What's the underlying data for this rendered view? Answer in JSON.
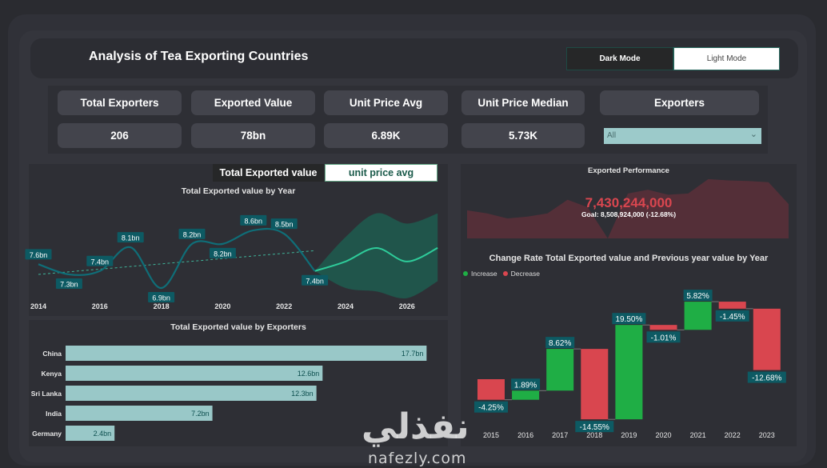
{
  "header": {
    "title": "Analysis of Tea Exporting Countries",
    "dark_mode": "Dark Mode",
    "light_mode": "Light Mode"
  },
  "kpis": [
    {
      "label": "Total Exporters",
      "value": "206"
    },
    {
      "label": "Exported Value",
      "value": "78bn"
    },
    {
      "label": "Unit Price Avg",
      "value": "6.89K"
    },
    {
      "label": "Unit Price Median",
      "value": "5.73K"
    }
  ],
  "filter": {
    "label": "Exporters",
    "value": "All"
  },
  "toggle": {
    "total": "Total Exported value",
    "unit": "unit price avg"
  },
  "performance": {
    "title": "Exported Performance",
    "value": "7,430,244,000",
    "goal": "Goal: 8,508,924,000 (-12.68%)",
    "trend": [
      0.45,
      0.4,
      0.32,
      0.35,
      0.4,
      0.62,
      0.5,
      0.0,
      0.72,
      0.78,
      0.7,
      0.72,
      0.95,
      0.93,
      0.92,
      0.9,
      0.55
    ],
    "accent": "#d9464f"
  },
  "chart_data": [
    {
      "type": "line",
      "title": "Total Exported value by Year",
      "x": [
        2014,
        2015,
        2016,
        2017,
        2018,
        2019,
        2020,
        2021,
        2022,
        2023
      ],
      "values": [
        7.6,
        7.3,
        7.4,
        8.1,
        6.9,
        8.2,
        8.2,
        8.6,
        8.5,
        7.4
      ],
      "labels": [
        "7.6bn",
        "7.3bn",
        "7.4bn",
        "8.1bn",
        "6.9bn",
        "8.2bn",
        "8.2bn",
        "8.6bn",
        "8.5bn",
        "7.4bn"
      ],
      "xticks": [
        "2014",
        "2016",
        "2018",
        "2020",
        "2022",
        "2024",
        "2026"
      ],
      "forecast": {
        "x": [
          2023,
          2024,
          2025,
          2026,
          2027
        ],
        "values": [
          7.4,
          7.68,
          8.08,
          7.68,
          8.08
        ],
        "upper": [
          7.4,
          8.4,
          9.1,
          8.8,
          9.1
        ],
        "lower": [
          7.4,
          6.9,
          6.8,
          6.6,
          7.1
        ]
      },
      "trendline": {
        "x": [
          2014,
          2023
        ],
        "values": [
          7.3,
          8.0
        ]
      },
      "unit": "bn",
      "line_color": "#0f6e78",
      "forecast_color": "#2ecc9a"
    },
    {
      "type": "bar",
      "title": "Total Exported value by Exporters",
      "categories": [
        "China",
        "Kenya",
        "Sri Lanka",
        "India",
        "Germany"
      ],
      "values": [
        17.7,
        12.6,
        12.3,
        7.2,
        2.4
      ],
      "labels": [
        "17.7bn",
        "12.6bn",
        "12.3bn",
        "7.2bn",
        "2.4bn"
      ],
      "color": "#99c8c8"
    },
    {
      "type": "waterfall",
      "title": "Change Rate Total Exported value and Previous year value by Year",
      "categories": [
        "2015",
        "2016",
        "2017",
        "2018",
        "2019",
        "2020",
        "2021",
        "2022",
        "2023"
      ],
      "values": [
        -4.25,
        1.89,
        8.62,
        -14.55,
        19.5,
        -1.01,
        5.82,
        -1.45,
        -12.68
      ],
      "labels": [
        "-4.25%",
        "1.89%",
        "8.62%",
        "-14.55%",
        "19.50%",
        "-1.01%",
        "5.82%",
        "-1.45%",
        "-12.68%"
      ],
      "legend": [
        {
          "name": "Increase",
          "color": "#1fae45"
        },
        {
          "name": "Decrease",
          "color": "#d9464f"
        }
      ]
    }
  ],
  "watermark": {
    "arabic": "نفذلي",
    "latin": "nafezly.com"
  }
}
